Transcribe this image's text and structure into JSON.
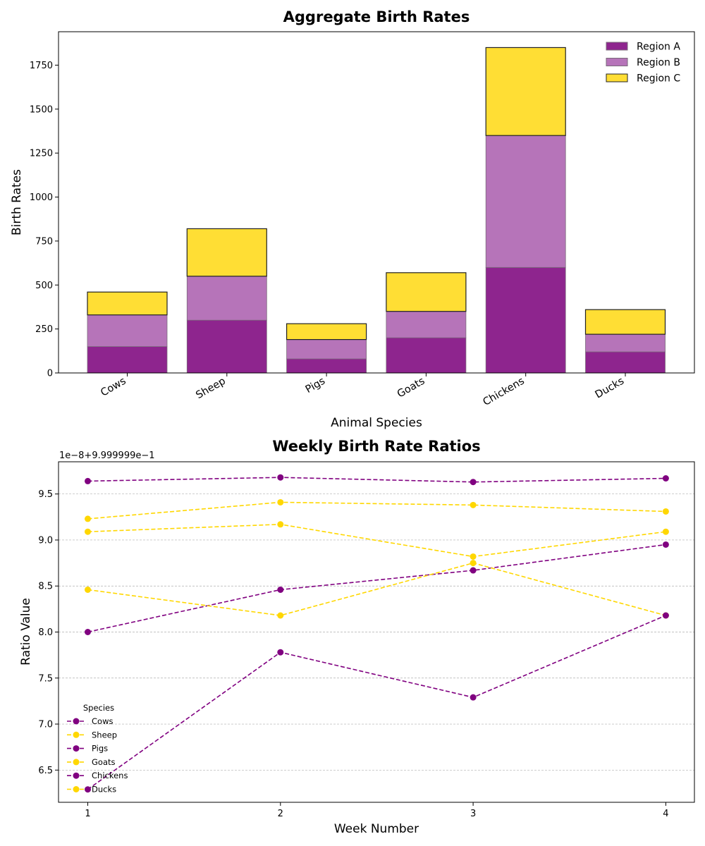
{
  "chart_data": [
    {
      "type": "bar",
      "stacked": true,
      "title": "Aggregate Birth Rates",
      "xlabel": "Animal Species",
      "ylabel": "Birth Rates",
      "categories": [
        "Cows",
        "Sheep",
        "Pigs",
        "Goats",
        "Chickens",
        "Ducks"
      ],
      "series": [
        {
          "name": "Region A",
          "values": [
            150,
            300,
            80,
            200,
            600,
            120
          ],
          "color": "#8e258e"
        },
        {
          "name": "Region B",
          "values": [
            180,
            250,
            110,
            150,
            750,
            100
          ],
          "color": "#b674b9"
        },
        {
          "name": "Region C",
          "values": [
            130,
            270,
            90,
            220,
            500,
            140
          ],
          "color": "#ffde34"
        }
      ],
      "ylim": [
        0,
        1940
      ],
      "yticks": [
        0,
        250,
        500,
        750,
        1000,
        1250,
        1500,
        1750
      ],
      "grid": false,
      "legend": "top-right"
    },
    {
      "type": "line",
      "title": "Weekly Birth Rate Ratios",
      "xlabel": "Week Number",
      "ylabel": "Ratio Value",
      "offset_label": "1e−8+9.999999e−1",
      "x": [
        1,
        2,
        3,
        4
      ],
      "xticks": [
        "1",
        "2",
        "3",
        "4"
      ],
      "series": [
        {
          "name": "Cows",
          "values": [
            9.64,
            9.68,
            9.63,
            9.67
          ],
          "color": "#800080"
        },
        {
          "name": "Sheep",
          "values": [
            9.23,
            9.41,
            9.38,
            9.31
          ],
          "color": "#ffd700"
        },
        {
          "name": "Pigs",
          "values": [
            8.0,
            8.46,
            8.67,
            8.95
          ],
          "color": "#800080"
        },
        {
          "name": "Goats",
          "values": [
            8.46,
            8.18,
            8.75,
            8.18
          ],
          "color": "#ffd700"
        },
        {
          "name": "Chickens",
          "values": [
            6.29,
            7.78,
            7.29,
            8.18
          ],
          "color": "#800080"
        },
        {
          "name": "Ducks",
          "values": [
            9.09,
            9.17,
            8.82,
            9.09
          ],
          "color": "#ffd700"
        }
      ],
      "ylim": [
        6.15,
        9.85
      ],
      "yticks": [
        "6.5",
        "7.0",
        "7.5",
        "8.0",
        "8.5",
        "9.0",
        "9.5"
      ],
      "grid": true,
      "legend": "bottom-left",
      "legend_title": "Species"
    }
  ]
}
